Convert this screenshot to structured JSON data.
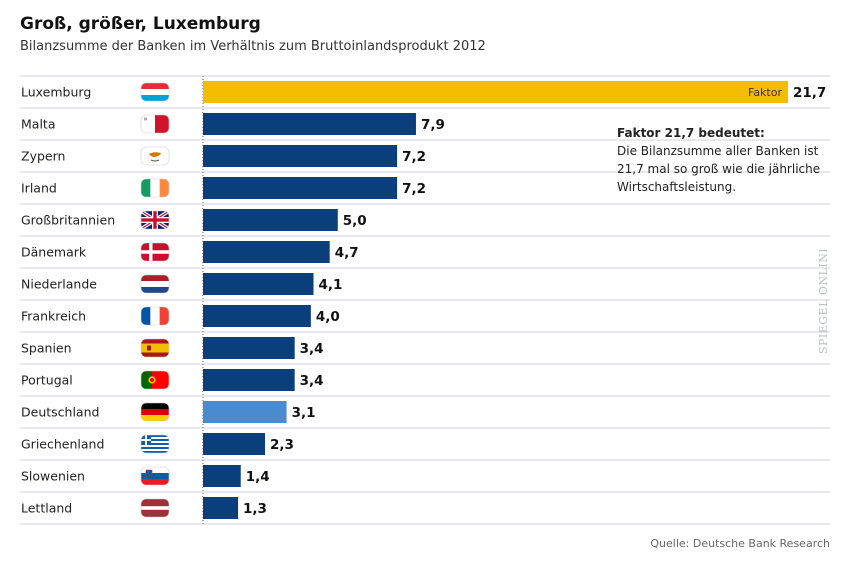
{
  "header": {
    "title": "Groß, größer, Luxemburg",
    "subtitle": "Bilanzsumme der Banken im Verhältnis zum Bruttoinlandsprodukt 2012"
  },
  "annotation": {
    "heading": "Faktor 21,7 bedeutet:",
    "body": "Die Bilanzsumme aller Banken ist 21,7 mal so groß wie die jährliche Wirtschaftsleistung."
  },
  "source": "Quelle: Deutsche Bank Research",
  "brand": "SPIEGEL ONLINE",
  "colors": {
    "bar": "#0b3f7c",
    "highlight": "#f5bd00",
    "germany": "#4a8bcf",
    "grid": "#cfd3d8"
  },
  "chart_data": {
    "type": "bar",
    "orientation": "horizontal",
    "title": "Groß, größer, Luxemburg",
    "subtitle": "Bilanzsumme der Banken im Verhältnis zum Bruttoinlandsprodukt 2012",
    "categories": [
      "Luxemburg",
      "Malta",
      "Zypern",
      "Irland",
      "Großbritannien",
      "Dänemark",
      "Niederlande",
      "Frankreich",
      "Spanien",
      "Portugal",
      "Deutschland",
      "Griechenland",
      "Slowenien",
      "Lettland"
    ],
    "values": [
      21.7,
      7.9,
      7.2,
      7.2,
      5.0,
      4.7,
      4.1,
      4.0,
      3.4,
      3.4,
      3.1,
      2.3,
      1.4,
      1.3
    ],
    "labels": [
      "21,7",
      "7,9",
      "7,2",
      "7,2",
      "5,0",
      "4,7",
      "4,1",
      "4,0",
      "3,4",
      "3,4",
      "3,1",
      "2,3",
      "1,4",
      "1,3"
    ],
    "inside_label": {
      "index": 0,
      "text": "Faktor"
    },
    "highlight": {
      "Luxemburg": "highlight",
      "Deutschland": "germany"
    },
    "flags": [
      "luxemburg-flag-icon",
      "malta-flag-icon",
      "zypern-flag-icon",
      "irland-flag-icon",
      "grossbritannien-flag-icon",
      "daenemark-flag-icon",
      "niederlande-flag-icon",
      "frankreich-flag-icon",
      "spanien-flag-icon",
      "portugal-flag-icon",
      "deutschland-flag-icon",
      "griechenland-flag-icon",
      "slowenien-flag-icon",
      "lettland-flag-icon"
    ],
    "xlim": [
      0,
      21.7
    ],
    "xlabel": "",
    "ylabel": "",
    "grid": "row separators"
  }
}
